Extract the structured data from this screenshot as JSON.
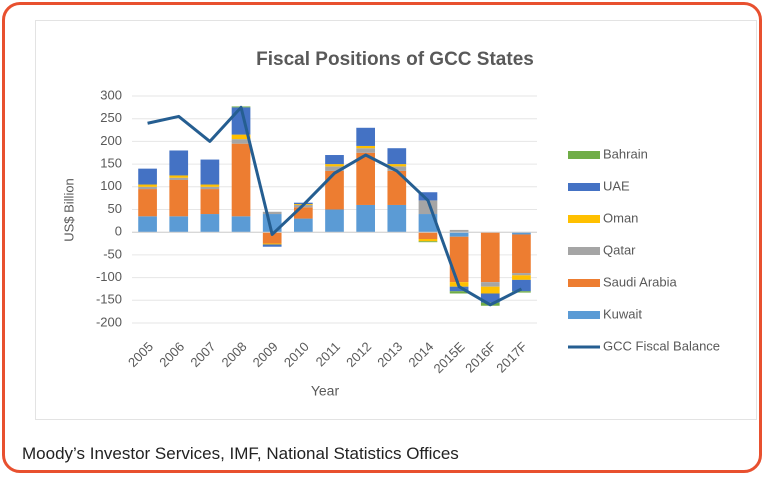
{
  "chart_data": {
    "type": "bar",
    "title": "Fiscal Positions of GCC States",
    "y_label": "US$ Billion",
    "x_label": "Year",
    "source": "Moody’s Investor Services, IMF, National Statistics Offices",
    "categories": [
      "2005",
      "2006",
      "2007",
      "2008",
      "2009",
      "2010",
      "2011",
      "2012",
      "2013",
      "2014",
      "2015E",
      "2016F",
      "2017F"
    ],
    "series": [
      {
        "name": "Kuwait",
        "color": "#5b9bd5",
        "type": "bar",
        "values": [
          35,
          35,
          40,
          35,
          40,
          30,
          50,
          60,
          60,
          40,
          -10,
          0,
          -5
        ]
      },
      {
        "name": "Saudi Arabia",
        "color": "#ed7d31",
        "type": "bar",
        "values": [
          60,
          80,
          55,
          160,
          -25,
          25,
          85,
          115,
          75,
          -15,
          -100,
          -110,
          -85
        ]
      },
      {
        "name": "Qatar",
        "color": "#a5a5a5",
        "type": "bar",
        "values": [
          5,
          5,
          5,
          10,
          5,
          5,
          10,
          10,
          10,
          30,
          5,
          -10,
          -5
        ]
      },
      {
        "name": "Oman",
        "color": "#ffc000",
        "type": "bar",
        "values": [
          5,
          5,
          5,
          10,
          -2,
          2,
          5,
          5,
          5,
          -5,
          -10,
          -15,
          -10
        ]
      },
      {
        "name": "UAE",
        "color": "#4472c4",
        "type": "bar",
        "values": [
          35,
          55,
          55,
          60,
          -5,
          3,
          20,
          40,
          35,
          18,
          -10,
          -20,
          -25
        ]
      },
      {
        "name": "Bahrain",
        "color": "#70ad47",
        "type": "bar",
        "values": [
          0,
          0,
          0,
          2,
          0,
          0,
          0,
          0,
          0,
          -2,
          -5,
          -7,
          -3
        ]
      },
      {
        "name": "GCC Fiscal Balance",
        "color": "#255e91",
        "type": "line",
        "values": [
          240,
          255,
          200,
          275,
          -5,
          60,
          130,
          170,
          135,
          70,
          -120,
          -160,
          -125
        ]
      }
    ],
    "ylim": [
      -200,
      300
    ],
    "yticks": [
      -200,
      -150,
      -100,
      -50,
      0,
      50,
      100,
      150,
      200,
      250,
      300
    ],
    "grid": true
  }
}
